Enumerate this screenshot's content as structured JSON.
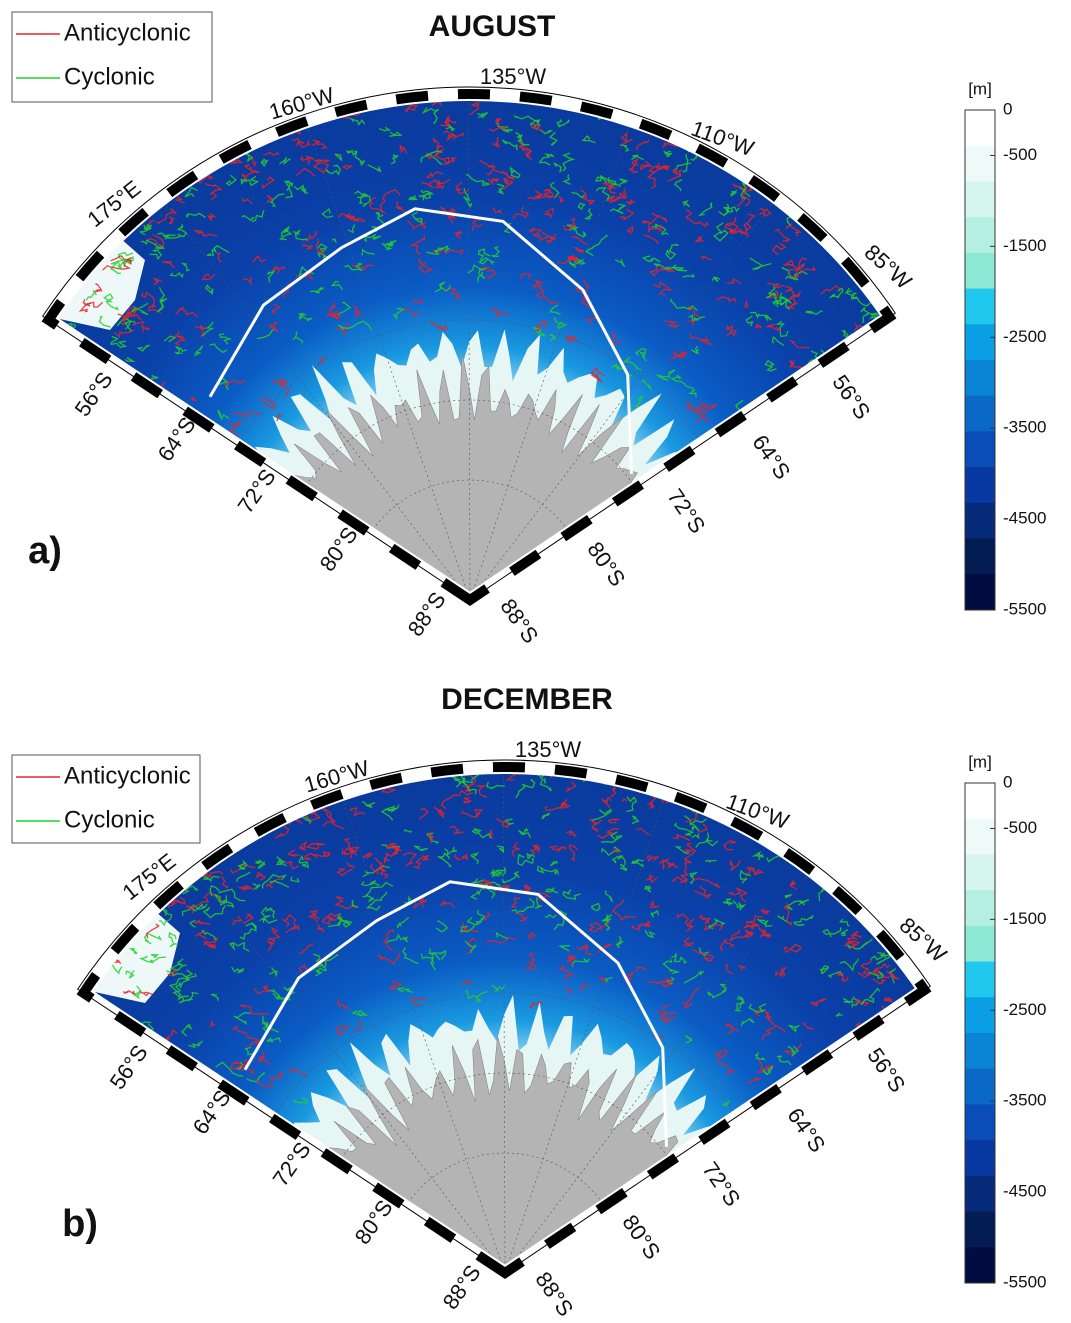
{
  "panels": [
    {
      "label": "a)",
      "title": "AUGUST",
      "legend": [
        {
          "name": "Anticyclonic",
          "color": "#e8232a"
        },
        {
          "name": "Cyclonic",
          "color": "#22d12a"
        }
      ],
      "lon_labels": [
        "175°E",
        "160°W",
        "135°W",
        "110°W",
        "85°W"
      ],
      "lat_labels_left": [
        "56°S",
        "64°S",
        "72°S",
        "80°S",
        "88°S"
      ],
      "lat_labels_right": [
        "56°S",
        "64°S",
        "72°S",
        "80°S",
        "88°S"
      ],
      "colorbar": {
        "label": "[m]",
        "lim": [
          -5500,
          0
        ],
        "ticks": [
          0,
          -500,
          -1500,
          -2500,
          -3500,
          -4500,
          -5500
        ]
      }
    },
    {
      "label": "b)",
      "title": "DECEMBER",
      "legend": [
        {
          "name": "Anticyclonic",
          "color": "#e8232a"
        },
        {
          "name": "Cyclonic",
          "color": "#22d12a"
        }
      ],
      "lon_labels": [
        "175°E",
        "160°W",
        "135°W",
        "110°W",
        "85°W"
      ],
      "lat_labels_left": [
        "56°S",
        "64°S",
        "72°S",
        "80°S",
        "88°S"
      ],
      "lat_labels_right": [
        "56°S",
        "64°S",
        "72°S",
        "80°S",
        "88°S"
      ],
      "colorbar": {
        "label": "[m]",
        "lim": [
          -5500,
          0
        ],
        "ticks": [
          0,
          -500,
          -1500,
          -2500,
          -3500,
          -4500,
          -5500
        ]
      }
    }
  ],
  "colorbar_colors": [
    "#ffffff",
    "#eefaf8",
    "#d6f5ef",
    "#b4efe2",
    "#8ee8d6",
    "#20c8f0",
    "#0a9ee4",
    "#0a84d4",
    "#0a68c6",
    "#0a4cb8",
    "#0838a2",
    "#062a7a",
    "#031c52",
    "#020c40"
  ]
}
